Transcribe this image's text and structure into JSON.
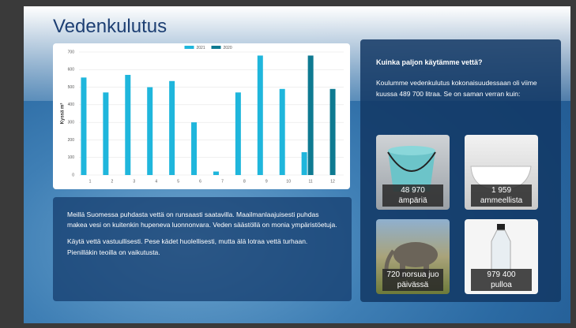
{
  "title": "Vedenkulutus",
  "chart_data": {
    "type": "bar",
    "y_label": "Kyssä m³",
    "categories": [
      "1",
      "2",
      "3",
      "4",
      "5",
      "6",
      "7",
      "8",
      "9",
      "10",
      "11",
      "12"
    ],
    "series": [
      {
        "name": "2021",
        "color": "#1fb6dc",
        "values": [
          555,
          470,
          570,
          500,
          535,
          300,
          20,
          470,
          680,
          490,
          130,
          null
        ]
      },
      {
        "name": "2020",
        "color": "#0e7a91",
        "values": [
          null,
          null,
          null,
          null,
          null,
          null,
          null,
          null,
          null,
          null,
          680,
          490
        ]
      }
    ],
    "ylim": [
      0,
      700
    ],
    "yticks": [
      0,
      100,
      200,
      300,
      400,
      500,
      600,
      700
    ],
    "grid": true,
    "legend": "top"
  },
  "text_box": {
    "paragraphs": [
      "Meillä Suomessa puhdasta vettä on runsaasti saatavilla. Maailmanlaajuisesti puhdas makea vesi on kuitenkin hupeneva luonnonvara. Veden säästöllä on monia ympäristöetuja.",
      "Käytä vettä vastuullisesti. Pese kädet huolellisesti, mutta älä lotraa vettä turhaan. Pienilläkin teoilla on vaikutusta."
    ]
  },
  "info_panel": {
    "title": "Kuinka paljon käytämme vettä?",
    "text": "Koulumme vedenkulutus kokonaisuudessaan oli viime kuussa 489 700 litraa. Se on saman verran kuin:",
    "tiles": [
      {
        "lines": [
          "48 970",
          "ämpäriä"
        ]
      },
      {
        "lines": [
          "1 959",
          "ammeellista"
        ]
      },
      {
        "lines": [
          "720 norsua juo",
          "päivässä"
        ]
      },
      {
        "lines": [
          "979 400",
          "pulloa"
        ]
      }
    ]
  }
}
